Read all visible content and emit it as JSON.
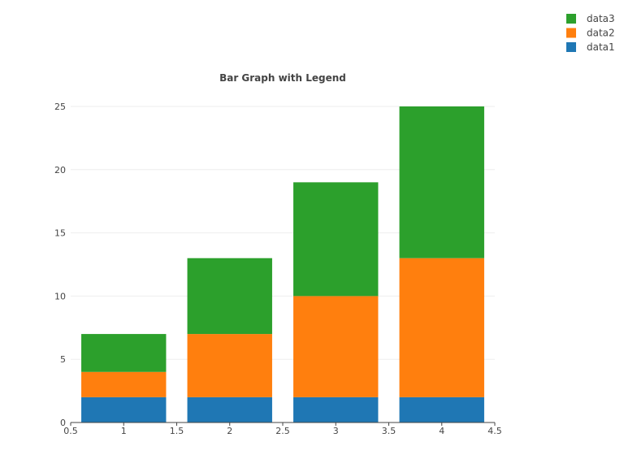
{
  "chart_data": {
    "type": "bar",
    "stacked": true,
    "title": "Bar Graph with Legend",
    "xlabel": "",
    "ylabel": "",
    "x": [
      1,
      2,
      3,
      4
    ],
    "xlim": [
      0.5,
      4.5
    ],
    "ylim": [
      0,
      25
    ],
    "x_ticks": [
      "0.5",
      "1",
      "1.5",
      "2",
      "2.5",
      "3",
      "3.5",
      "4",
      "4.5"
    ],
    "y_ticks": [
      "0",
      "5",
      "10",
      "15",
      "20",
      "25"
    ],
    "grid": true,
    "legend_position": "top-right",
    "series": [
      {
        "name": "data1",
        "values": [
          2,
          2,
          2,
          2
        ],
        "color": "#1f77b4"
      },
      {
        "name": "data2",
        "values": [
          2,
          5,
          8,
          11
        ],
        "color": "#ff7f0e"
      },
      {
        "name": "data3",
        "values": [
          3,
          6,
          9,
          12
        ],
        "color": "#2ca02c"
      }
    ],
    "legend_order": [
      "data3",
      "data2",
      "data1"
    ]
  }
}
